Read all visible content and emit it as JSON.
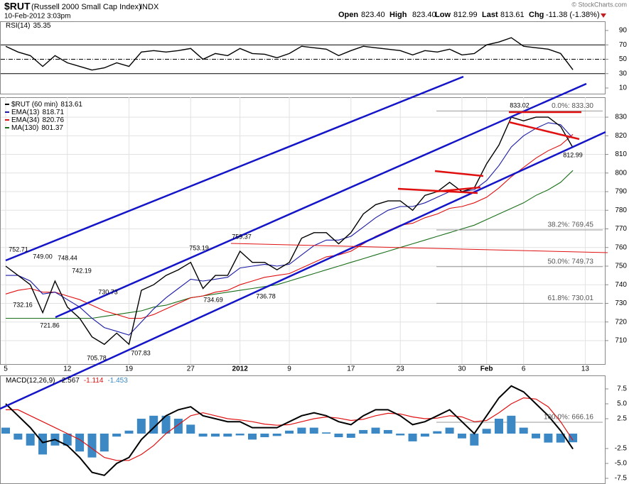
{
  "header": {
    "symbol": "$RUT",
    "name": "(Russell 2000 Small Cap Index)",
    "exchange": "INDX",
    "date": "10-Feb-2012 3:03pm",
    "copyright": "© StockCharts.com",
    "quote": [
      {
        "label": "Open",
        "value": "823.40"
      },
      {
        "label": "High",
        "value": "823.40"
      },
      {
        "label": "Low",
        "value": "812.99"
      },
      {
        "label": "Last",
        "value": "813.61"
      },
      {
        "label": "Chg",
        "value": "-11.38 (-1.38%)"
      }
    ]
  },
  "chart_data": [
    {
      "type": "line",
      "title": "RSI(14)",
      "last": 35.35,
      "ylim": [
        1.1,
        102.8
      ],
      "yticks": [
        90,
        70,
        50,
        30,
        10
      ],
      "series": [
        {
          "name": "RSI(14)",
          "color": "#000000",
          "values": [
            68,
            60,
            55,
            40,
            55,
            45,
            40,
            35,
            38,
            45,
            40,
            60,
            62,
            60,
            62,
            65,
            50,
            58,
            55,
            65,
            58,
            57,
            52,
            58,
            68,
            66,
            64,
            55,
            62,
            68,
            66,
            64,
            62,
            56,
            62,
            60,
            64,
            56,
            58,
            70,
            74,
            80,
            68,
            66,
            64,
            58,
            35.35,
            null
          ]
        }
      ]
    },
    {
      "type": "line",
      "ylim": [
        697.4,
        840.7
      ],
      "yticks": [
        710,
        720,
        730,
        740,
        750,
        760,
        770,
        780,
        790,
        800,
        810,
        820,
        830
      ],
      "grid": true,
      "categories": [
        "5",
        null,
        null,
        null,
        null,
        "12",
        null,
        null,
        null,
        null,
        "19",
        null,
        null,
        null,
        null,
        "27",
        null,
        null,
        null,
        "2012",
        null,
        null,
        null,
        "9",
        null,
        null,
        null,
        null,
        "17",
        null,
        null,
        null,
        "23",
        null,
        null,
        null,
        null,
        "30",
        null,
        "Feb",
        null,
        null,
        "6",
        null,
        null,
        null,
        null,
        "13"
      ],
      "series": [
        {
          "name": "$RUT (60 min)",
          "last": 813.61,
          "color": "#000000",
          "values": [
            750,
            745,
            740,
            725,
            742,
            728,
            722,
            712,
            708,
            714,
            708,
            737,
            740,
            745,
            748,
            752,
            738,
            745,
            745,
            758,
            752,
            752,
            748,
            752,
            765,
            768,
            768,
            762,
            768,
            778,
            783,
            785,
            785,
            780,
            788,
            790,
            795,
            790,
            792,
            805,
            815,
            830,
            828,
            830,
            830,
            825,
            813.61,
            null
          ]
        },
        {
          "name": "EMA(13)",
          "last": 818.71,
          "color": "#1a1aa6",
          "values": [
            745,
            745,
            742,
            735,
            736,
            732,
            728,
            722,
            717,
            715,
            713,
            720,
            727,
            733,
            738,
            743,
            742,
            743,
            744,
            749,
            750,
            751,
            750,
            751,
            756,
            761,
            764,
            764,
            766,
            771,
            776,
            780,
            782,
            782,
            784,
            787,
            790,
            790,
            791,
            796,
            804,
            814,
            820,
            824,
            827,
            826,
            818.71,
            null
          ]
        },
        {
          "name": "EMA(34)",
          "last": 820.76,
          "color": "#e01010",
          "values": [
            735,
            737,
            738,
            736,
            736,
            734,
            732,
            729,
            726,
            724,
            722,
            722,
            724,
            727,
            730,
            733,
            734,
            736,
            737,
            740,
            742,
            744,
            745,
            746,
            749,
            752,
            755,
            756,
            758,
            762,
            766,
            769,
            772,
            773,
            776,
            778,
            781,
            782,
            784,
            787,
            792,
            798,
            803,
            808,
            812,
            815,
            820.76,
            null
          ]
        },
        {
          "name": "MA(130)",
          "last": 801.37,
          "color": "#1a6e1a",
          "values": [
            722,
            722,
            722,
            722,
            722,
            722,
            722,
            722,
            723,
            724,
            725,
            726,
            728,
            729,
            731,
            733,
            734,
            735,
            736,
            737,
            738,
            739,
            740,
            742,
            744,
            746,
            748,
            750,
            752,
            754,
            756,
            758,
            760,
            762,
            764,
            766,
            768,
            770,
            772,
            775,
            778,
            781,
            784,
            788,
            791,
            795,
            801.37,
            null
          ]
        }
      ],
      "price_labels": [
        "752.71",
        "749.00",
        "748.44",
        "742.19",
        "732.16",
        "721.86",
        "705.78",
        "730.73",
        "707.83",
        "753.19",
        "734.69",
        "759.37",
        "736.78",
        "833.02",
        "812.99"
      ],
      "fib_levels": [
        {
          "label": "0.0%: 833.30",
          "value": 833.3
        },
        {
          "label": "38.2%: 769.45",
          "value": 769.45
        },
        {
          "label": "50.0%: 749.73",
          "value": 749.73
        },
        {
          "label": "61.8%: 730.01",
          "value": 730.01
        },
        {
          "label": "100.0%: 666.16",
          "value": 666.16
        }
      ]
    },
    {
      "type": "macd",
      "title": "MACD(12,26,9)",
      "ylim": [
        -8.45,
        9.64
      ],
      "yticks": [
        {
          "value": 7.5,
          "label": "7.5"
        },
        {
          "value": 5,
          "label": "5.0"
        },
        2.5,
        -2.5,
        {
          "value": -5,
          "label": "-5.0"
        },
        -7.5
      ],
      "series": [
        {
          "name": "MACD",
          "last": -2.567,
          "color": "#000000",
          "values": [
            5,
            3,
            1,
            -1.5,
            -1,
            -2,
            -4,
            -6.5,
            -7,
            -5,
            -4,
            -1,
            1,
            3,
            4,
            4.5,
            3,
            2.5,
            2,
            2,
            1,
            1,
            1,
            2,
            3,
            3.5,
            3,
            2,
            1.5,
            3,
            4,
            4,
            3,
            1.5,
            2,
            3,
            4,
            2,
            0,
            3,
            6,
            8,
            7,
            5,
            3,
            0.5,
            -2.567,
            null
          ]
        },
        {
          "name": "Signal",
          "last": -1.114,
          "color": "#e01010",
          "values": [
            4,
            4,
            3,
            2,
            1,
            0,
            -1,
            -2.5,
            -4,
            -4.5,
            -4.5,
            -3.5,
            -2,
            0,
            1.5,
            3,
            3.5,
            3,
            2.5,
            2.3,
            2,
            1.6,
            1.4,
            1.5,
            2,
            2.5,
            2.8,
            2.6,
            2.2,
            2.4,
            3,
            3.4,
            3.3,
            2.8,
            2.5,
            2.6,
            3,
            2.8,
            2,
            2.2,
            3.5,
            5,
            6,
            5.8,
            4.5,
            2,
            -1.114,
            null
          ]
        },
        {
          "name": "Histogram",
          "last": -1.453,
          "color": "#3b88c4",
          "values": [
            1,
            -1,
            -2,
            -3.5,
            -2,
            -2,
            -3,
            -4,
            -3,
            -0.5,
            0.5,
            2.5,
            3,
            3,
            2.5,
            1.5,
            -0.5,
            -0.5,
            -0.5,
            -0.3,
            -1,
            -0.6,
            -0.4,
            0.5,
            1,
            1,
            0.2,
            -0.6,
            -0.7,
            0.6,
            1,
            0.6,
            -0.3,
            -1.3,
            -0.5,
            0.4,
            1,
            -0.8,
            -2,
            0.8,
            2.5,
            3,
            1,
            -0.8,
            -1.5,
            -1.5,
            -1.453,
            null
          ]
        }
      ]
    }
  ]
}
